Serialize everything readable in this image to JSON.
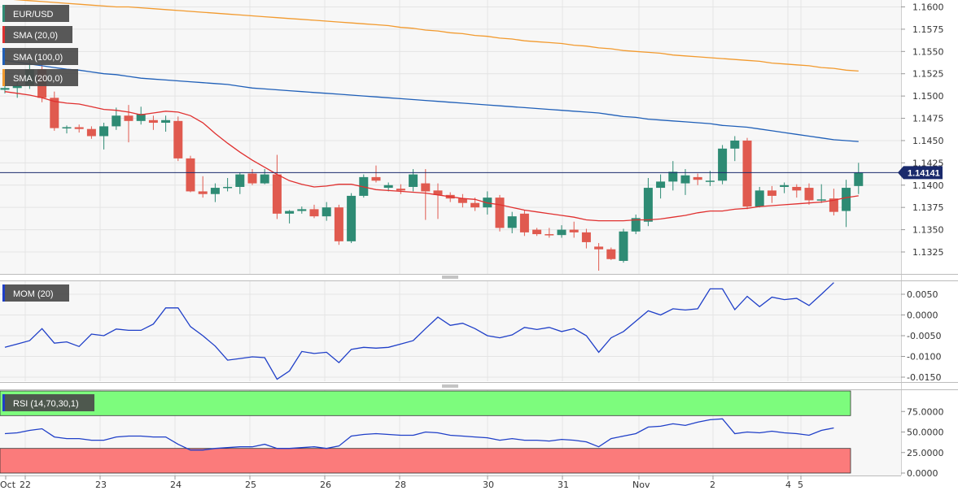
{
  "chart_data": [
    {
      "type": "candlestick",
      "title": "EUR/USD",
      "overlays": [
        {
          "name": "SMA (20,0)",
          "color": "#e0302f"
        },
        {
          "name": "SMA (100,0)",
          "color": "#1f5fb8"
        },
        {
          "name": "SMA (200,0)",
          "color": "#f29a2e"
        }
      ],
      "ylim": [
        1.13,
        1.161
      ],
      "yticks": [
        "1.1600",
        "1.1575",
        "1.1550",
        "1.1525",
        "1.1500",
        "1.1475",
        "1.1450",
        "1.1425",
        "1.1400",
        "1.1375",
        "1.1350",
        "1.1325"
      ],
      "current_price": "1.14141",
      "current_price_value": 1.14141,
      "x_labels": [
        "Oct",
        "22",
        "23",
        "24",
        "25",
        "26",
        "28",
        "30",
        "31",
        "Nov",
        "2",
        "4",
        "5"
      ],
      "colors": {
        "up": "#2e8b74",
        "down": "#e05a4f",
        "price_line": "#1a2a6c"
      },
      "candles": [
        [
          1.1507,
          1.1512,
          1.1503,
          1.1509
        ],
        [
          1.1509,
          1.1518,
          1.1498,
          1.1512
        ],
        [
          1.1512,
          1.154,
          1.1508,
          1.153
        ],
        [
          1.153,
          1.1536,
          1.1493,
          1.1498
        ],
        [
          1.1498,
          1.1505,
          1.1461,
          1.1464
        ],
        [
          1.1464,
          1.1467,
          1.1458,
          1.1465
        ],
        [
          1.1465,
          1.1468,
          1.1459,
          1.1463
        ],
        [
          1.1463,
          1.1466,
          1.1452,
          1.1455
        ],
        [
          1.1455,
          1.147,
          1.144,
          1.1466
        ],
        [
          1.1466,
          1.1487,
          1.1462,
          1.1478
        ],
        [
          1.1478,
          1.149,
          1.1448,
          1.1472
        ],
        [
          1.1472,
          1.1488,
          1.1468,
          1.148
        ],
        [
          1.1473,
          1.1478,
          1.1462,
          1.147
        ],
        [
          1.147,
          1.1478,
          1.146,
          1.1473
        ],
        [
          1.1472,
          1.1477,
          1.1427,
          1.143
        ],
        [
          1.143,
          1.1433,
          1.1392,
          1.1393
        ],
        [
          1.1393,
          1.141,
          1.1386,
          1.139
        ],
        [
          1.139,
          1.1402,
          1.1381,
          1.1397
        ],
        [
          1.1397,
          1.1408,
          1.1393,
          1.1398
        ],
        [
          1.1398,
          1.1414,
          1.139,
          1.1412
        ],
        [
          1.1413,
          1.1418,
          1.14,
          1.1402
        ],
        [
          1.1402,
          1.1418,
          1.1401,
          1.1412
        ],
        [
          1.1412,
          1.1434,
          1.1362,
          1.1368
        ],
        [
          1.1368,
          1.1372,
          1.1357,
          1.1371
        ],
        [
          1.1371,
          1.1376,
          1.1368,
          1.1373
        ],
        [
          1.1373,
          1.1378,
          1.1363,
          1.1365
        ],
        [
          1.1365,
          1.1381,
          1.136,
          1.1375
        ],
        [
          1.1375,
          1.1378,
          1.1333,
          1.1337
        ],
        [
          1.1337,
          1.1391,
          1.1335,
          1.1388
        ],
        [
          1.1388,
          1.1412,
          1.1386,
          1.1409
        ],
        [
          1.1409,
          1.1422,
          1.1403,
          1.1405
        ],
        [
          1.1397,
          1.1403,
          1.1393,
          1.14
        ],
        [
          1.1396,
          1.1401,
          1.139,
          1.1394
        ],
        [
          1.1398,
          1.1418,
          1.1393,
          1.1412
        ],
        [
          1.1402,
          1.1418,
          1.1361,
          1.1393
        ],
        [
          1.1394,
          1.1402,
          1.1362,
          1.1389
        ],
        [
          1.1389,
          1.1392,
          1.1381,
          1.1385
        ],
        [
          1.1385,
          1.139,
          1.1375,
          1.138
        ],
        [
          1.138,
          1.1386,
          1.1371,
          1.1375
        ],
        [
          1.1375,
          1.1393,
          1.1367,
          1.1386
        ],
        [
          1.1386,
          1.1389,
          1.1348,
          1.1352
        ],
        [
          1.1352,
          1.137,
          1.1346,
          1.1365
        ],
        [
          1.1368,
          1.1372,
          1.1343,
          1.1347
        ],
        [
          1.135,
          1.1352,
          1.1343,
          1.1345
        ],
        [
          1.1345,
          1.1352,
          1.1341,
          1.1344
        ],
        [
          1.1344,
          1.1355,
          1.1341,
          1.135
        ],
        [
          1.135,
          1.1359,
          1.1341,
          1.1347
        ],
        [
          1.1347,
          1.1351,
          1.1329,
          1.1336
        ],
        [
          1.1331,
          1.1335,
          1.1304,
          1.1328
        ],
        [
          1.1328,
          1.133,
          1.1316,
          1.1317
        ],
        [
          1.1315,
          1.1351,
          1.1313,
          1.1348
        ],
        [
          1.1348,
          1.1367,
          1.1345,
          1.1363
        ],
        [
          1.1359,
          1.1408,
          1.1354,
          1.1397
        ],
        [
          1.1397,
          1.1412,
          1.1385,
          1.1404
        ],
        [
          1.1404,
          1.1427,
          1.1394,
          1.1415
        ],
        [
          1.1402,
          1.1418,
          1.1389,
          1.1411
        ],
        [
          1.1409,
          1.1413,
          1.14,
          1.1406
        ],
        [
          1.1404,
          1.1416,
          1.1399,
          1.1405
        ],
        [
          1.1405,
          1.1445,
          1.1401,
          1.1441
        ],
        [
          1.1441,
          1.1455,
          1.1427,
          1.145
        ],
        [
          1.145,
          1.1453,
          1.1373,
          1.1376
        ],
        [
          1.1376,
          1.1398,
          1.1375,
          1.1394
        ],
        [
          1.1394,
          1.1399,
          1.138,
          1.1388
        ],
        [
          1.1398,
          1.1403,
          1.1391,
          1.14
        ],
        [
          1.1398,
          1.1401,
          1.1386,
          1.1394
        ],
        [
          1.1397,
          1.1402,
          1.1378,
          1.1383
        ],
        [
          1.1383,
          1.1401,
          1.138,
          1.1384
        ],
        [
          1.1385,
          1.1396,
          1.1366,
          1.137
        ],
        [
          1.1371,
          1.1406,
          1.1353,
          1.1397
        ],
        [
          1.1399,
          1.1425,
          1.139,
          1.1414
        ]
      ],
      "sma20": [
        1.1505,
        1.1503,
        1.1501,
        1.1498,
        1.1494,
        1.1492,
        1.1491,
        1.1488,
        1.1485,
        1.1484,
        1.1482,
        1.1479,
        1.1481,
        1.1483,
        1.1482,
        1.1478,
        1.147,
        1.1458,
        1.1447,
        1.1437,
        1.1428,
        1.142,
        1.1412,
        1.1405,
        1.1401,
        1.1398,
        1.1399,
        1.1401,
        1.1401,
        1.1398,
        1.1395,
        1.1394,
        1.1393,
        1.1392,
        1.1391,
        1.1389,
        1.1387,
        1.1385,
        1.1384,
        1.138,
        1.1378,
        1.1375,
        1.1372,
        1.137,
        1.1368,
        1.1366,
        1.1364,
        1.1361,
        1.136,
        1.136,
        1.136,
        1.1361,
        1.1361,
        1.1362,
        1.1364,
        1.1366,
        1.1369,
        1.1371,
        1.1371,
        1.1373,
        1.1374,
        1.1376,
        1.1377,
        1.1378,
        1.1379,
        1.138,
        1.1381,
        1.1383,
        1.1386,
        1.1388
      ],
      "sma100": [
        1.154,
        1.1538,
        1.1536,
        1.1534,
        1.1532,
        1.153,
        1.1529,
        1.1527,
        1.1525,
        1.1524,
        1.1522,
        1.152,
        1.1519,
        1.1518,
        1.1517,
        1.1516,
        1.1515,
        1.1514,
        1.1513,
        1.1511,
        1.1509,
        1.1508,
        1.1507,
        1.1506,
        1.1505,
        1.1504,
        1.1503,
        1.1502,
        1.1501,
        1.15,
        1.1499,
        1.1498,
        1.1497,
        1.1496,
        1.1495,
        1.1494,
        1.1493,
        1.1492,
        1.1491,
        1.149,
        1.1489,
        1.1488,
        1.1487,
        1.1486,
        1.1485,
        1.1484,
        1.1483,
        1.1482,
        1.1481,
        1.1479,
        1.1477,
        1.1476,
        1.1474,
        1.1473,
        1.1472,
        1.1471,
        1.147,
        1.1469,
        1.1467,
        1.1466,
        1.1465,
        1.1463,
        1.1461,
        1.1459,
        1.1457,
        1.1455,
        1.1453,
        1.1451,
        1.145,
        1.1449
      ],
      "sma200": [
        1.1609,
        1.1608,
        1.1607,
        1.1606,
        1.1605,
        1.1604,
        1.1603,
        1.1602,
        1.1601,
        1.16,
        1.16,
        1.1599,
        1.1598,
        1.1597,
        1.1596,
        1.1595,
        1.1594,
        1.1593,
        1.1592,
        1.1591,
        1.159,
        1.1589,
        1.1588,
        1.1587,
        1.1586,
        1.1585,
        1.1584,
        1.1583,
        1.1582,
        1.1581,
        1.158,
        1.1579,
        1.1577,
        1.1576,
        1.1574,
        1.1573,
        1.1571,
        1.157,
        1.1568,
        1.1567,
        1.1565,
        1.1564,
        1.1562,
        1.1561,
        1.156,
        1.1559,
        1.1557,
        1.1556,
        1.1554,
        1.1553,
        1.1551,
        1.155,
        1.1549,
        1.1548,
        1.1546,
        1.1545,
        1.1544,
        1.1543,
        1.1542,
        1.1541,
        1.154,
        1.1539,
        1.1537,
        1.1536,
        1.1535,
        1.1534,
        1.1532,
        1.1531,
        1.1529,
        1.1528
      ]
    },
    {
      "type": "line",
      "title": "MOM (20)",
      "color": "#1f3fc8",
      "ylim": [
        -0.0165,
        0.008
      ],
      "yticks": [
        "0.0050",
        "0.0000",
        "-0.0050",
        "-0.0100",
        "-0.0150"
      ],
      "values": [
        -0.0078,
        -0.007,
        -0.0062,
        -0.0033,
        -0.0068,
        -0.0065,
        -0.0076,
        -0.0046,
        -0.005,
        -0.0034,
        -0.0037,
        -0.0037,
        -0.0022,
        0.0017,
        0.0017,
        -0.0028,
        -0.005,
        -0.0075,
        -0.0109,
        -0.0105,
        -0.0101,
        -0.0103,
        -0.0155,
        -0.0135,
        -0.0088,
        -0.0093,
        -0.009,
        -0.0115,
        -0.0083,
        -0.0078,
        -0.008,
        -0.0078,
        -0.007,
        -0.0062,
        -0.0033,
        -0.0005,
        -0.0025,
        -0.002,
        -0.0033,
        -0.005,
        -0.0055,
        -0.0048,
        -0.003,
        -0.0035,
        -0.003,
        -0.004,
        -0.0033,
        -0.005,
        -0.009,
        -0.0055,
        -0.004,
        -0.0015,
        0.001,
        0.0,
        0.0015,
        0.0012,
        0.0015,
        0.0063,
        0.0063,
        0.0013,
        0.0045,
        0.002,
        0.0043,
        0.0037,
        0.004,
        0.0023,
        0.005,
        0.0078
      ]
    },
    {
      "type": "line",
      "title": "RSI (14,70,30,1)",
      "color": "#1f3fc8",
      "ylim": [
        0,
        100
      ],
      "yticks": [
        "75.0000",
        "50.0000",
        "25.0000",
        "0.0000"
      ],
      "overbought": 70,
      "oversold": 30,
      "zone_colors": {
        "overbought": "#7dfc7d",
        "oversold": "#fb7b7b"
      },
      "values": [
        48,
        49,
        52,
        54,
        44,
        42,
        42,
        40,
        40,
        44,
        45,
        45,
        44,
        44,
        35,
        28,
        28,
        30,
        31,
        32,
        32,
        35,
        30,
        30,
        31,
        32,
        30,
        33,
        45,
        47,
        48,
        47,
        46,
        46,
        50,
        49,
        46,
        45,
        44,
        43,
        40,
        42,
        40,
        40,
        39,
        41,
        40,
        38,
        32,
        42,
        45,
        48,
        56,
        57,
        60,
        58,
        62,
        65,
        66,
        48,
        50,
        49,
        51,
        49,
        48,
        46,
        52,
        55
      ]
    }
  ]
}
